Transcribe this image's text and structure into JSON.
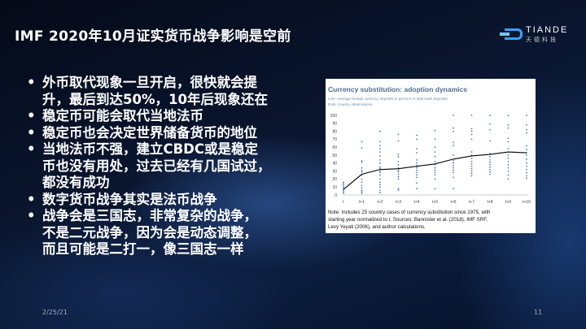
{
  "slide": {
    "title": "IMF 2020年10月证实货币战争影响是空前",
    "logo": {
      "name": "TIANDE",
      "subtitle": "天德科技"
    },
    "bullets": [
      {
        "lines": [
          "外币取代现象一旦开启，很快就会提",
          "升，最后到达50%，10年后现象还在"
        ]
      },
      {
        "lines": [
          "稳定币可能会取代当地法币"
        ]
      },
      {
        "lines": [
          "稳定币也会决定世界储备货币的地位"
        ]
      },
      {
        "lines": [
          "当地法币不强，建立CBDC或是稳定",
          "币也没有用处，过去已经有几国试过，",
          "都没有成功"
        ]
      },
      {
        "lines": [
          "数字货币战争其实是法币战争"
        ]
      },
      {
        "lines": [
          "战争会是三国志，非常复杂的战争，",
          "不是二元战争，因为会是动态调整，",
          "而且可能是二打一，像三国志一样"
        ]
      }
    ],
    "footer": {
      "date": "2/25/21",
      "page": "11"
    }
  },
  "chart_data": {
    "type": "line",
    "title": "Currency substitution: adoption dynamics",
    "subtitle_lines": [
      "Line: Average foreign currency deposits in percent of total bank deposits.",
      "Dots: country observations."
    ],
    "note_lines": [
      "Note: Includes 25 country cases of currency substitution since 1975, with",
      "starting year normalized to t. Sources: Bannister et al. (2018), IMF SRF,",
      "Levy Yeyati (2006), and author calculations."
    ],
    "categories": [
      "t",
      "t+1",
      "t+2",
      "t+3",
      "t+4",
      "t+5",
      "t+6",
      "t+7",
      "t+8",
      "t+9",
      "t+10"
    ],
    "ylim": [
      0,
      100
    ],
    "yticks": [
      0,
      10,
      20,
      30,
      40,
      50,
      60,
      70,
      80,
      90,
      100
    ],
    "grid": false,
    "line_color": "#000000",
    "dot_color": "#4a7fa8",
    "series": [
      {
        "type": "line",
        "values": [
          7,
          26,
          32,
          33,
          36,
          39,
          45,
          49,
          51,
          54,
          53
        ]
      },
      {
        "type": "scatter",
        "points": [
          [
            0,
            [
              2,
              4,
              6,
              8,
              10,
              12,
              14,
              16
            ]
          ],
          [
            1,
            [
              2,
              4,
              6,
              9,
              12,
              16,
              20,
              25,
              29,
              31,
              34,
              41,
              43,
              59,
              67
            ]
          ],
          [
            2,
            [
              3,
              6,
              10,
              13,
              16,
              20,
              25,
              28,
              30,
              33,
              35,
              40,
              44,
              49,
              54,
              58,
              62,
              67,
              80
            ]
          ],
          [
            3,
            [
              6,
              8,
              20,
              23,
              26,
              29,
              31,
              34,
              38,
              42,
              48,
              51,
              68,
              76
            ]
          ],
          [
            4,
            [
              8,
              15,
              22,
              25,
              28,
              31,
              34,
              37,
              40,
              44,
              53,
              58,
              70,
              75
            ]
          ],
          [
            5,
            [
              8,
              20,
              25,
              28,
              31,
              34,
              38,
              42,
              48,
              54,
              60,
              70,
              81
            ]
          ],
          [
            6,
            [
              8,
              22,
              28,
              31,
              34,
              37,
              40,
              43,
              50,
              62,
              66,
              80,
              84,
              100
            ]
          ],
          [
            7,
            [
              24,
              27,
              30,
              33,
              36,
              39,
              42,
              46,
              50,
              54,
              70,
              76,
              80,
              83,
              100
            ]
          ],
          [
            8,
            [
              26,
              29,
              32,
              35,
              38,
              41,
              44,
              48,
              52,
              68,
              82,
              89,
              100
            ]
          ],
          [
            9,
            [
              20,
              25,
              30,
              34,
              38,
              42,
              46,
              50,
              58,
              67,
              71,
              84,
              88,
              100
            ]
          ],
          [
            10,
            [
              21,
              24,
              28,
              32,
              36,
              40,
              45,
              50,
              53,
              57,
              62,
              78,
              82,
              88,
              100
            ]
          ]
        ]
      }
    ]
  }
}
